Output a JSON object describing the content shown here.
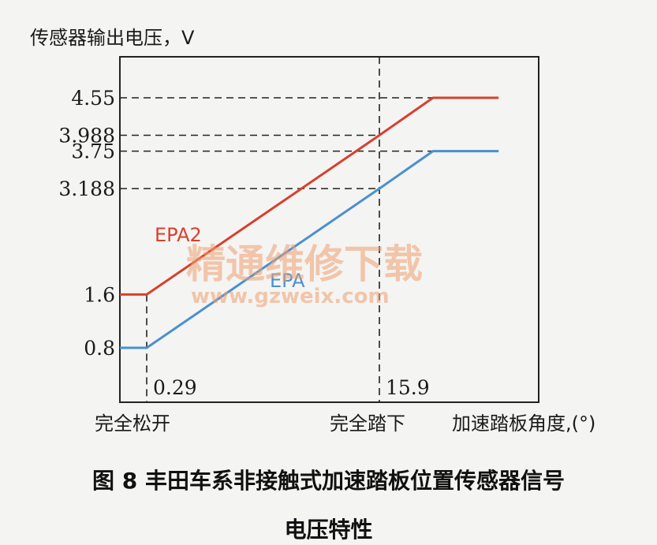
{
  "chart_data": {
    "type": "line",
    "ylabel": "传感器输出电压，V",
    "xlabel": "加速踏板角度,(°)",
    "x_categories_left": "完全松开",
    "x_categories_right": "完全踏下",
    "y_ticks": [
      "4.55",
      "3.988",
      "3.75",
      "3.188",
      "1.6",
      "0.8"
    ],
    "y_tick_values": [
      4.55,
      3.988,
      3.75,
      3.188,
      1.6,
      0.8
    ],
    "x_ticks": [
      "0.29",
      "15.9"
    ],
    "x_tick_values": [
      0.29,
      15.9
    ],
    "series": [
      {
        "name": "EPA2",
        "color": "#d8402e",
        "points": [
          [
            0,
            1.6
          ],
          [
            0.29,
            1.6
          ],
          [
            15.9,
            3.988
          ],
          [
            19.5,
            4.55
          ],
          [
            23.9,
            4.55
          ]
        ]
      },
      {
        "name": "EPA",
        "color": "#4a90d0",
        "points": [
          [
            0,
            0.8
          ],
          [
            0.29,
            0.8
          ],
          [
            15.9,
            3.188
          ],
          [
            19.5,
            3.75
          ],
          [
            23.9,
            3.75
          ]
        ]
      }
    ]
  },
  "watermark": {
    "cn": "精通维修下载",
    "url": "www.gzweix.com"
  },
  "caption": {
    "line1": "图 8  丰田车系非接触式加速踏板位置传感器信号",
    "line2": "电压特性"
  }
}
